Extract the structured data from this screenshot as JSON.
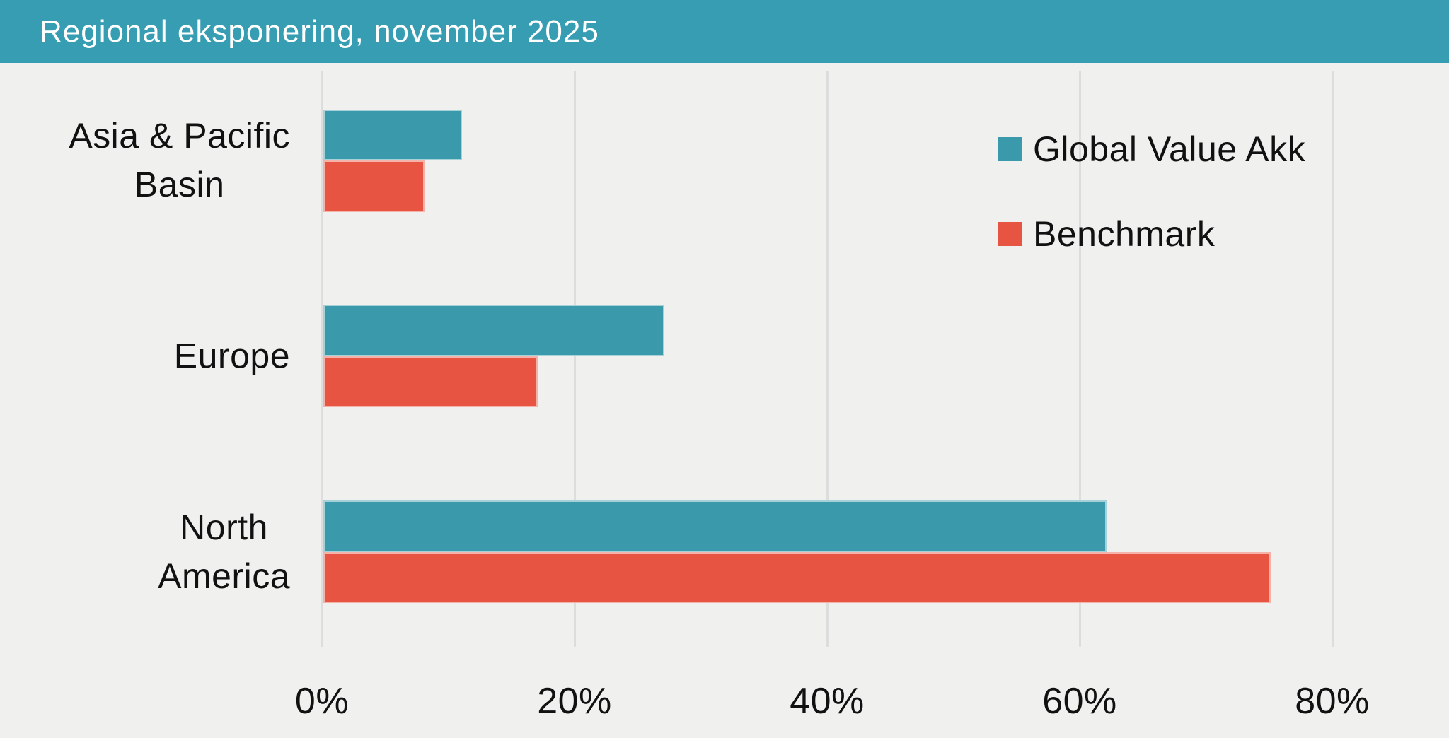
{
  "header": {
    "title": "Regional eksponering, november 2025",
    "background_color": "#369DB2",
    "text_color": "#FFFFFF"
  },
  "chart_data": {
    "type": "bar",
    "orientation": "horizontal",
    "title": "Regional eksponering, november 2025",
    "categories": [
      "Asia & Pacific\nBasin",
      "Europe",
      "North\nAmerica"
    ],
    "series": [
      {
        "name": "Global Value Akk",
        "color": "#3A9AAB",
        "values": [
          11,
          27,
          62
        ]
      },
      {
        "name": "Benchmark",
        "color": "#E75542",
        "values": [
          8,
          17,
          75
        ]
      }
    ],
    "x_axis": {
      "unit": "%",
      "min": 0,
      "max": 88,
      "tick_values": [
        0,
        20,
        40,
        60,
        80
      ],
      "tick_labels": [
        "0%",
        "20%",
        "40%",
        "60%",
        "80%"
      ]
    },
    "grid": "vertical-only",
    "legend_position": "top-right",
    "plot_background_color": "#F0F1EF",
    "gridline_color": "#DCDDDC",
    "label_text_color": "#111111"
  }
}
